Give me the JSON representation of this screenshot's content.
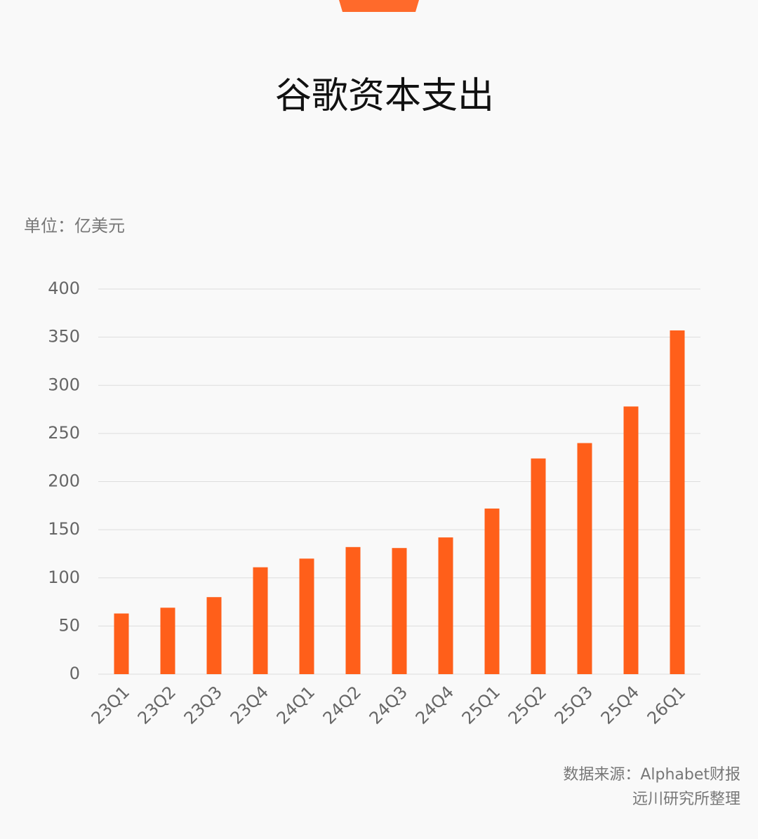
{
  "chart_data": {
    "type": "bar",
    "title": "谷歌资本支出",
    "unit_label": "单位：亿美元",
    "categories": [
      "23Q1",
      "23Q2",
      "23Q3",
      "23Q4",
      "24Q1",
      "24Q2",
      "24Q3",
      "24Q4",
      "25Q1",
      "25Q2",
      "25Q3",
      "25Q4",
      "26Q1"
    ],
    "values": [
      63,
      69,
      80,
      111,
      120,
      132,
      131,
      142,
      172,
      224,
      240,
      278,
      357
    ],
    "color": "#ff5f1a",
    "ylim": [
      0,
      400
    ],
    "yticks": [
      0,
      50,
      100,
      150,
      200,
      250,
      300,
      350,
      400
    ],
    "grid": true,
    "source": [
      "数据来源：Alphabet财报",
      "远川研究所整理"
    ]
  }
}
